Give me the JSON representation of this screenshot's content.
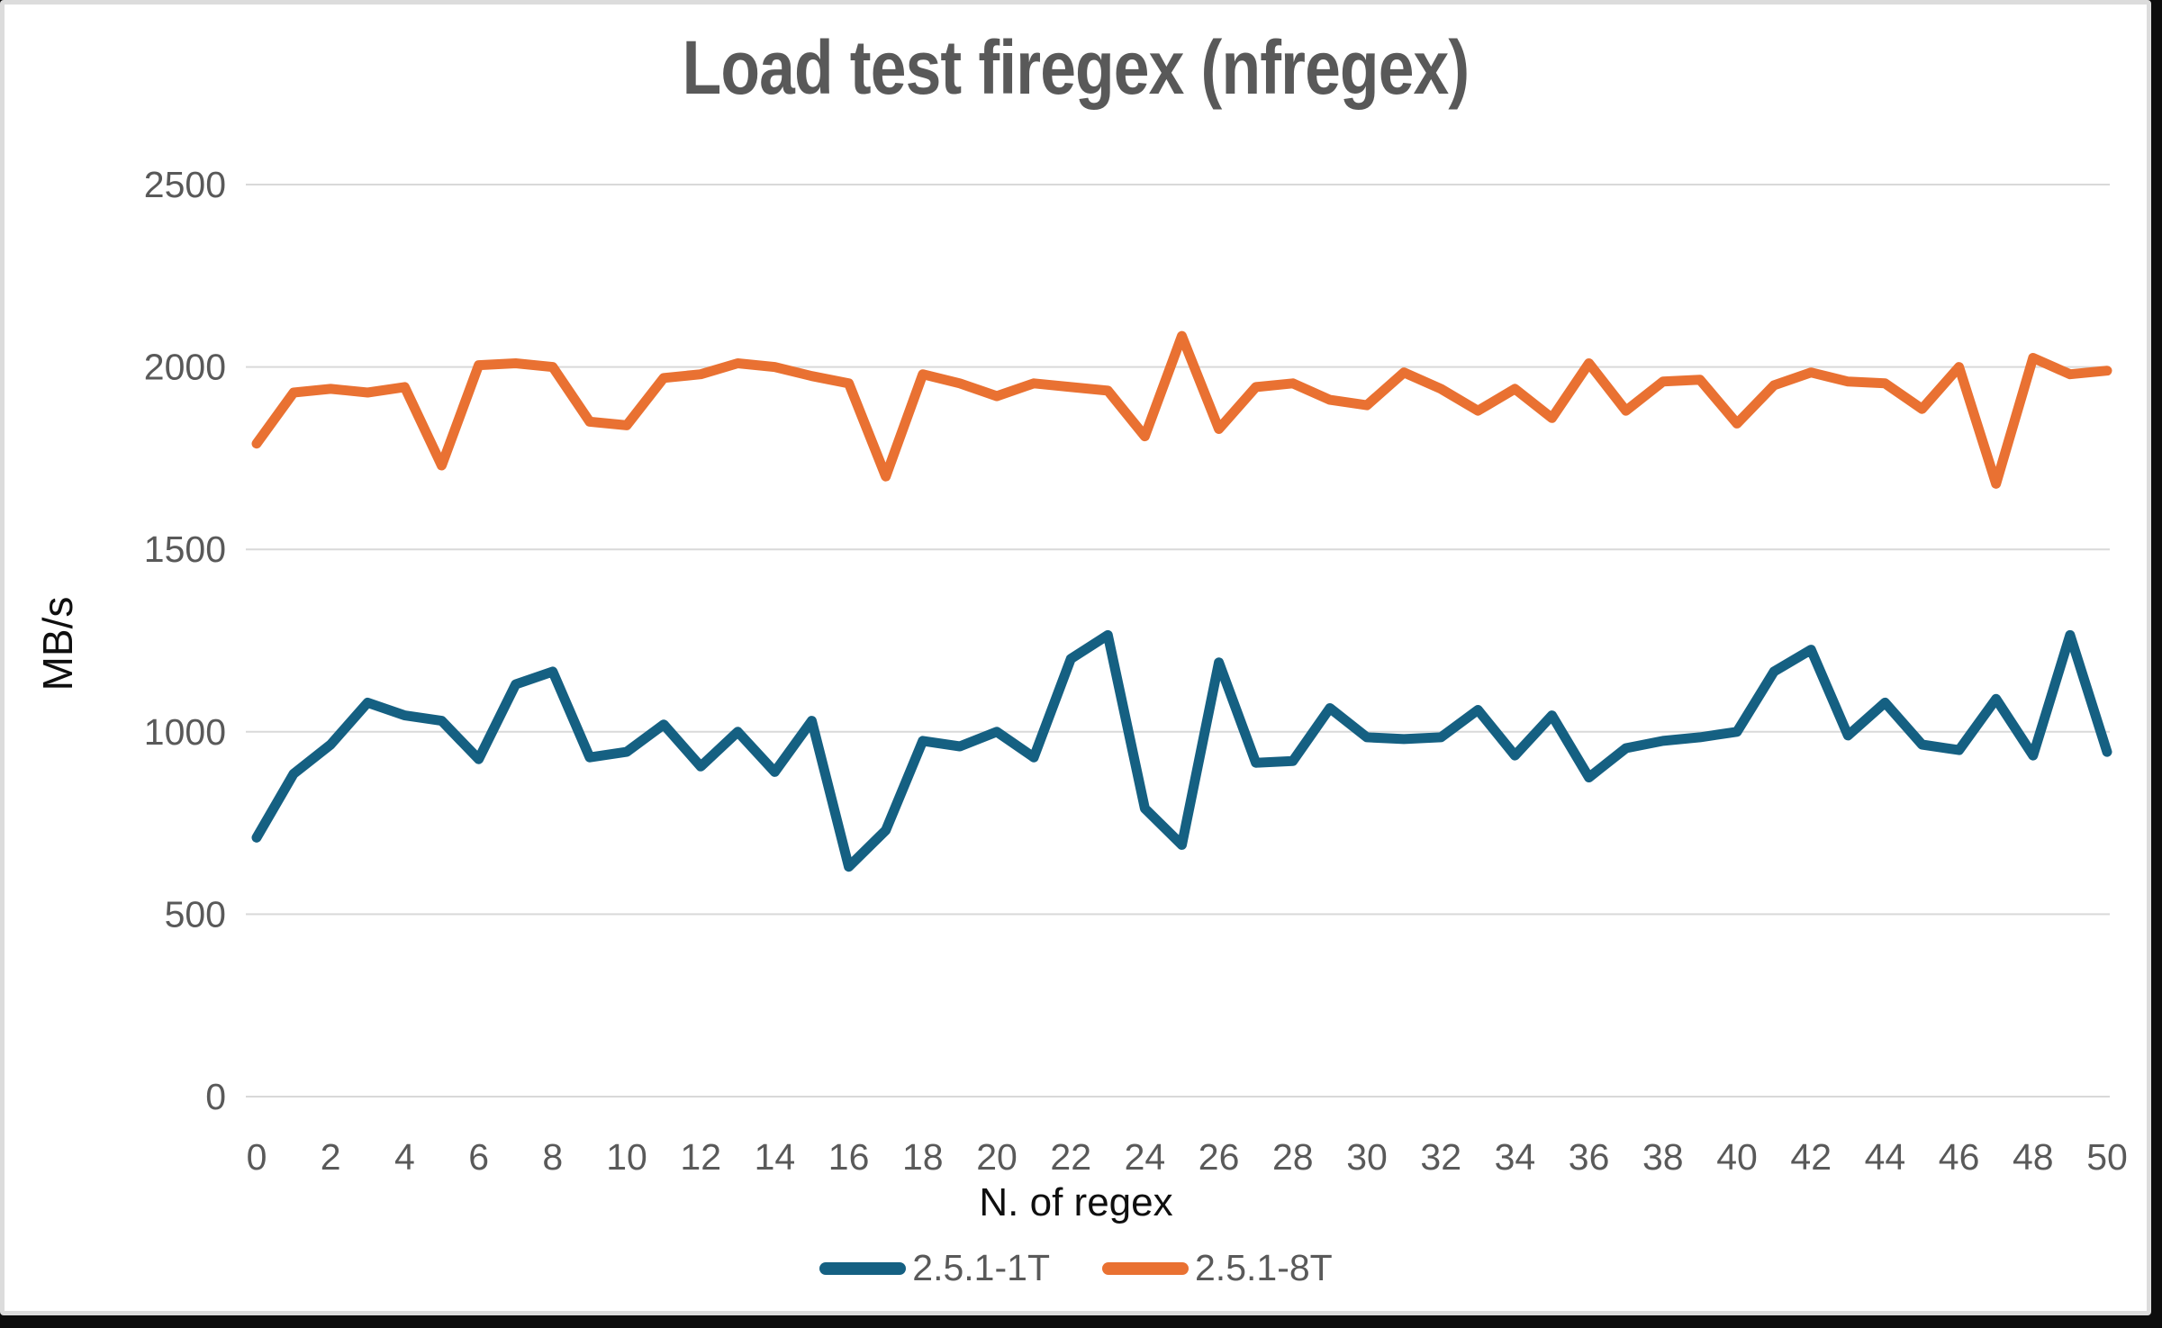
{
  "frame": {
    "card_background": "#ffffff",
    "card_border_color": "#dcdcdc",
    "backdrop_color": "#0d0d0d"
  },
  "chart_data": {
    "type": "line",
    "title": "Load test firegex (nfregex)",
    "xlabel": "N. of regex",
    "ylabel": "MB/s",
    "xlim": [
      0,
      50
    ],
    "ylim": [
      0,
      2500
    ],
    "grid": true,
    "legend_position": "bottom",
    "gridline_color": "#d9d9d9",
    "tick_text_color": "#595959",
    "title_color": "#595959",
    "axis_title_color": "#0f0f0f",
    "x_ticks": [
      0,
      2,
      4,
      6,
      8,
      10,
      12,
      14,
      16,
      18,
      20,
      22,
      24,
      26,
      28,
      30,
      32,
      34,
      36,
      38,
      40,
      42,
      44,
      46,
      48,
      50
    ],
    "y_ticks": [
      0,
      500,
      1000,
      1500,
      2000,
      2500
    ],
    "x": [
      0,
      1,
      2,
      3,
      4,
      5,
      6,
      7,
      8,
      9,
      10,
      11,
      12,
      13,
      14,
      15,
      16,
      17,
      18,
      19,
      20,
      21,
      22,
      23,
      24,
      25,
      26,
      27,
      28,
      29,
      30,
      31,
      32,
      33,
      34,
      35,
      36,
      37,
      38,
      39,
      40,
      41,
      42,
      43,
      44,
      45,
      46,
      47,
      48,
      49,
      50
    ],
    "series": [
      {
        "name": "2.5.1-1T",
        "color": "#156082",
        "values": [
          710,
          885,
          965,
          1080,
          1045,
          1030,
          925,
          1130,
          1165,
          930,
          945,
          1020,
          905,
          1000,
          890,
          1030,
          630,
          730,
          975,
          960,
          1000,
          930,
          1200,
          1265,
          790,
          690,
          1190,
          915,
          920,
          1065,
          985,
          980,
          985,
          1060,
          935,
          1045,
          875,
          955,
          975,
          985,
          1000,
          1165,
          1225,
          990,
          1080,
          965,
          950,
          1090,
          935,
          1265,
          945
        ]
      },
      {
        "name": "2.5.1-8T",
        "color": "#E97132",
        "values": [
          1790,
          1930,
          1940,
          1930,
          1945,
          1730,
          2005,
          2010,
          2000,
          1850,
          1840,
          1970,
          1980,
          2010,
          2000,
          1975,
          1955,
          1700,
          1980,
          1955,
          1920,
          1955,
          1945,
          1935,
          1810,
          2085,
          1830,
          1945,
          1955,
          1910,
          1895,
          1985,
          1940,
          1880,
          1940,
          1860,
          2010,
          1880,
          1960,
          1965,
          1845,
          1950,
          1985,
          1960,
          1955,
          1885,
          2000,
          1680,
          2025,
          1980,
          1990
        ]
      }
    ]
  }
}
